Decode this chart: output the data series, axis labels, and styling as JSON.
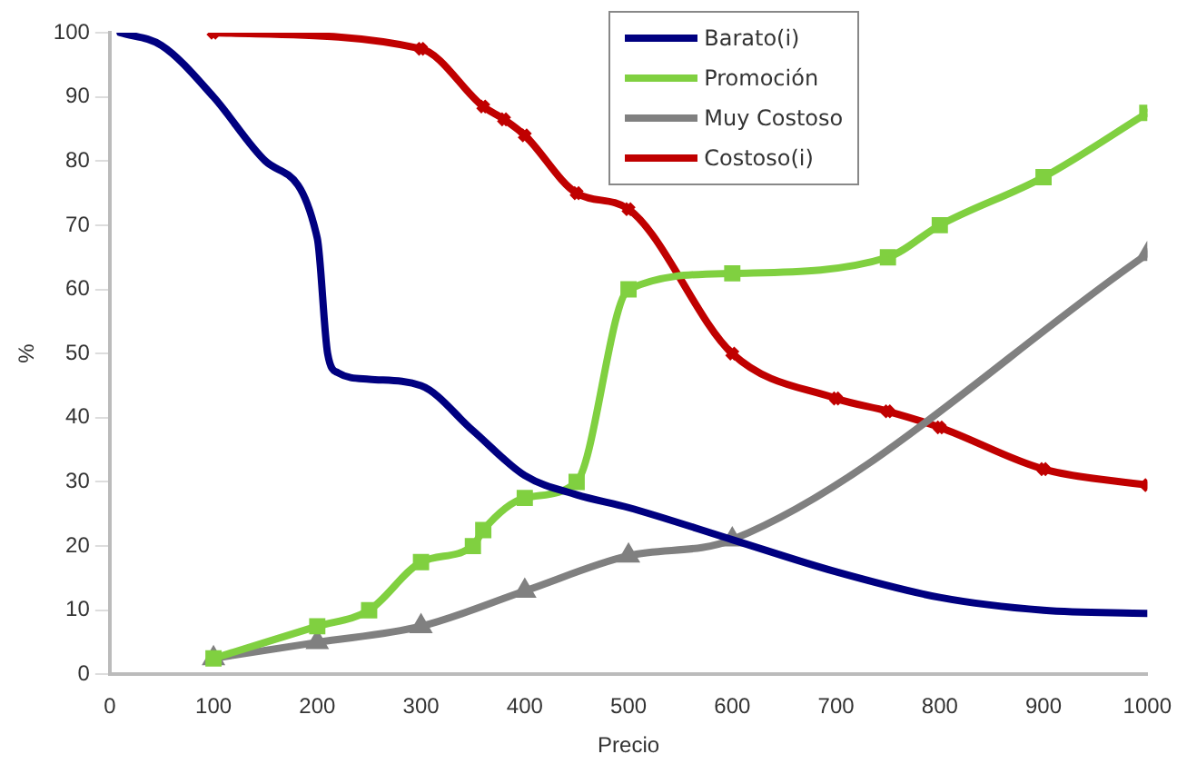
{
  "chart_data": {
    "type": "line",
    "xlabel": "Precio",
    "ylabel": "%",
    "xlim": [
      0,
      1000
    ],
    "xticks": [
      0,
      100,
      200,
      300,
      400,
      500,
      600,
      700,
      800,
      900,
      1000
    ],
    "ylim": [
      0,
      100
    ],
    "yticks": [
      0,
      10,
      20,
      30,
      40,
      50,
      60,
      70,
      80,
      90,
      100
    ],
    "grid": false,
    "legend": "top right",
    "series": [
      {
        "name": "Barato(i)",
        "color": "#000080",
        "marker": "none",
        "x": [
          10,
          50,
          100,
          150,
          200,
          210,
          220,
          250,
          300,
          350,
          400,
          450,
          500,
          600,
          700,
          800,
          900,
          1000
        ],
        "values": [
          100,
          98,
          90,
          80,
          68,
          50,
          47,
          46,
          45,
          38,
          31,
          28,
          26,
          21,
          16,
          12,
          10,
          9.5
        ]
      },
      {
        "name": "Promoción",
        "color": "#80d040",
        "marker": "square",
        "x": [
          100,
          200,
          250,
          300,
          350,
          360,
          400,
          450,
          500,
          600,
          750,
          800,
          900,
          1000
        ],
        "values": [
          2.5,
          7.5,
          10,
          17.5,
          20,
          22.5,
          27.5,
          30,
          60,
          62.5,
          65,
          70,
          77.5,
          87.5
        ]
      },
      {
        "name": "Muy Costoso",
        "color": "#808080",
        "marker": "triangle",
        "x": [
          100,
          200,
          300,
          400,
          500,
          600,
          1000
        ],
        "values": [
          2.5,
          5,
          7.5,
          13,
          18.5,
          21,
          65.5
        ]
      },
      {
        "name": "Costoso(i)",
        "color": "#c00000",
        "marker": "cross",
        "x": [
          100,
          300,
          360,
          380,
          400,
          450,
          500,
          600,
          700,
          750,
          800,
          900,
          1000
        ],
        "values": [
          100,
          97.5,
          88.5,
          86.5,
          84,
          75,
          72.5,
          50,
          43,
          41,
          38.5,
          32,
          29.5
        ]
      }
    ]
  }
}
